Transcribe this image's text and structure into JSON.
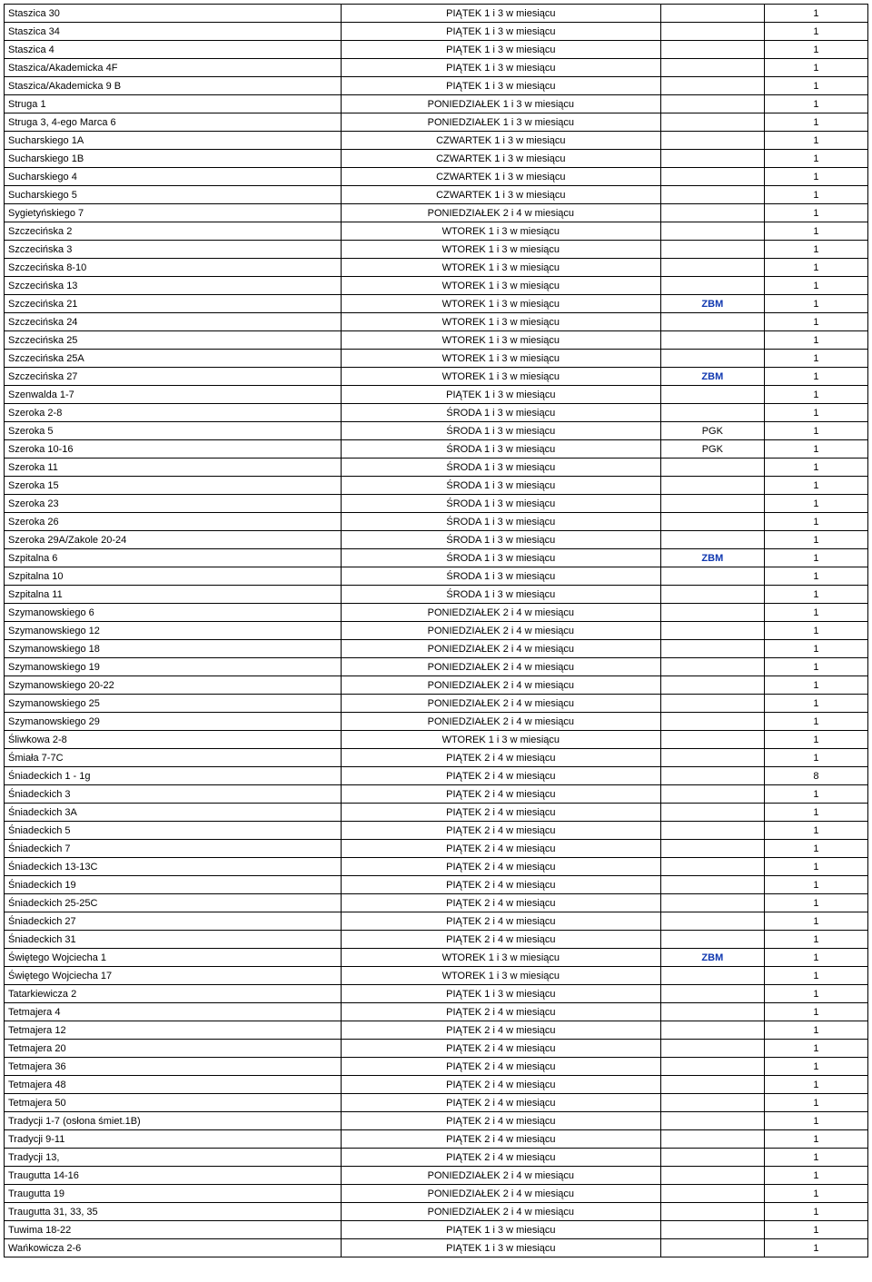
{
  "columns": [
    "address",
    "schedule",
    "tag",
    "qty"
  ],
  "tag_color": "#1038b0",
  "rows": [
    {
      "address": "Staszica 30",
      "schedule": "PIĄTEK 1 i 3 w miesiącu",
      "tag": "",
      "qty": "1"
    },
    {
      "address": "Staszica 34",
      "schedule": "PIĄTEK 1 i 3 w miesiącu",
      "tag": "",
      "qty": "1"
    },
    {
      "address": "Staszica 4",
      "schedule": "PIĄTEK 1 i 3 w miesiącu",
      "tag": "",
      "qty": "1"
    },
    {
      "address": "Staszica/Akademicka   4F",
      "schedule": "PIĄTEK 1 i 3 w miesiącu",
      "tag": "",
      "qty": "1"
    },
    {
      "address": "Staszica/Akademicka   9 B",
      "schedule": "PIĄTEK 1 i 3 w miesiącu",
      "tag": "",
      "qty": "1"
    },
    {
      "address": "Struga 1",
      "schedule": "PONIEDZIAŁEK 1 i 3 w miesiącu",
      "tag": "",
      "qty": "1"
    },
    {
      "address": "Struga 3, 4-ego Marca 6",
      "schedule": "PONIEDZIAŁEK 1 i 3 w miesiącu",
      "tag": "",
      "qty": "1"
    },
    {
      "address": "Sucharskiego   1A",
      "schedule": "CZWARTEK 1 i 3 w miesiącu",
      "tag": "",
      "qty": "1"
    },
    {
      "address": "Sucharskiego   1B",
      "schedule": "CZWARTEK 1 i 3 w miesiącu",
      "tag": "",
      "qty": "1"
    },
    {
      "address": "Sucharskiego   4",
      "schedule": "CZWARTEK 1 i 3 w miesiącu",
      "tag": "",
      "qty": "1"
    },
    {
      "address": "Sucharskiego   5",
      "schedule": "CZWARTEK 1 i 3 w miesiącu",
      "tag": "",
      "qty": "1"
    },
    {
      "address": "Sygietyńskiego 7",
      "schedule": "PONIEDZIAŁEK 2 i 4 w miesiącu",
      "tag": "",
      "qty": "1"
    },
    {
      "address": "Szczecińska   2",
      "schedule": "WTOREK 1 i 3 w miesiącu",
      "tag": "",
      "qty": "1"
    },
    {
      "address": "Szczecińska   3",
      "schedule": "WTOREK 1 i 3 w miesiącu",
      "tag": "",
      "qty": "1"
    },
    {
      "address": "Szczecińska   8-10",
      "schedule": "WTOREK 1 i 3 w miesiącu",
      "tag": "",
      "qty": "1"
    },
    {
      "address": "Szczecińska  13",
      "schedule": "WTOREK 1 i 3 w miesiącu",
      "tag": "",
      "qty": "1"
    },
    {
      "address": "Szczecińska  21",
      "schedule": "WTOREK 1 i 3 w miesiącu",
      "tag": "ZBM",
      "tag_bold": true,
      "qty": "1"
    },
    {
      "address": "Szczecińska  24",
      "schedule": "WTOREK 1 i 3 w miesiącu",
      "tag": "",
      "qty": "1"
    },
    {
      "address": "Szczecińska  25",
      "schedule": "WTOREK 1 i 3 w miesiącu",
      "tag": "",
      "qty": "1"
    },
    {
      "address": "Szczecińska  25A",
      "schedule": "WTOREK 1 i 3 w miesiącu",
      "tag": "",
      "qty": "1"
    },
    {
      "address": "Szczecińska  27",
      "schedule": "WTOREK 1 i 3 w miesiącu",
      "tag": "ZBM",
      "tag_bold": true,
      "qty": "1"
    },
    {
      "address": "Szenwalda   1-7",
      "schedule": "PIĄTEK 1 i 3 w miesiącu",
      "tag": "",
      "qty": "1"
    },
    {
      "address": "Szeroka   2-8",
      "schedule": "ŚRODA 1 i 3  w miesiącu",
      "tag": "",
      "qty": "1"
    },
    {
      "address": "Szeroka   5",
      "schedule": "ŚRODA 1 i 3  w miesiącu",
      "tag": "PGK",
      "qty": "1"
    },
    {
      "address": "Szeroka 10-16",
      "schedule": "ŚRODA 1 i 3  w miesiącu",
      "tag": "PGK",
      "qty": "1"
    },
    {
      "address": "Szeroka 11",
      "schedule": "ŚRODA 1 i 3  w miesiącu",
      "tag": "",
      "qty": "1"
    },
    {
      "address": "Szeroka 15",
      "schedule": "ŚRODA 1 i 3  w miesiącu",
      "tag": "",
      "qty": "1"
    },
    {
      "address": "Szeroka 23",
      "schedule": "ŚRODA 1 i 3  w miesiącu",
      "tag": "",
      "qty": "1"
    },
    {
      "address": "Szeroka 26",
      "schedule": "ŚRODA 1 i 3  w miesiącu",
      "tag": "",
      "qty": "1"
    },
    {
      "address": "Szeroka 29A/Zakole 20-24",
      "schedule": "ŚRODA 1 i 3  w miesiącu",
      "tag": "",
      "qty": "1"
    },
    {
      "address": "Szpitalna  6",
      "schedule": "ŚRODA 1 i 3  w miesiącu",
      "tag": "ZBM",
      "tag_bold": true,
      "qty": "1"
    },
    {
      "address": "Szpitalna 10",
      "schedule": "ŚRODA 1 i 3  w miesiącu",
      "tag": "",
      "qty": "1"
    },
    {
      "address": "Szpitalna 11",
      "schedule": "ŚRODA 1 i 3  w miesiącu",
      "tag": "",
      "qty": "1"
    },
    {
      "address": "Szymanowskiego  6",
      "schedule": "PONIEDZIAŁEK 2 i 4 w miesiącu",
      "tag": "",
      "qty": "1"
    },
    {
      "address": "Szymanowskiego 12",
      "schedule": "PONIEDZIAŁEK 2 i 4 w miesiącu",
      "tag": "",
      "qty": "1"
    },
    {
      "address": "Szymanowskiego 18",
      "schedule": "PONIEDZIAŁEK 2 i 4 w miesiącu",
      "tag": "",
      "qty": "1"
    },
    {
      "address": "Szymanowskiego 19",
      "schedule": "PONIEDZIAŁEK 2 i 4 w miesiącu",
      "tag": "",
      "qty": "1"
    },
    {
      "address": "Szymanowskiego 20-22",
      "schedule": "PONIEDZIAŁEK 2 i 4 w miesiącu",
      "tag": "",
      "qty": "1"
    },
    {
      "address": "Szymanowskiego 25",
      "schedule": "PONIEDZIAŁEK 2 i 4 w miesiącu",
      "tag": "",
      "qty": "1"
    },
    {
      "address": "Szymanowskiego 29",
      "schedule": "PONIEDZIAŁEK 2 i 4 w miesiącu",
      "tag": "",
      "qty": "1"
    },
    {
      "address": "Śliwkowa 2-8",
      "schedule": "WTOREK 1 i 3 w miesiącu",
      "tag": "",
      "qty": "1"
    },
    {
      "address": "Śmiała   7-7C",
      "schedule": "PIĄTEK 2 i 4 w miesiącu",
      "tag": "",
      "qty": "1"
    },
    {
      "address": "Śniadeckich  1 - 1g",
      "schedule": "PIĄTEK 2 i 4 w miesiącu",
      "tag": "",
      "qty": "8"
    },
    {
      "address": "Śniadeckich  3",
      "schedule": "PIĄTEK 2 i 4 w miesiącu",
      "tag": "",
      "qty": "1"
    },
    {
      "address": "Śniadeckich  3A",
      "schedule": "PIĄTEK 2 i 4 w miesiącu",
      "tag": "",
      "qty": "1"
    },
    {
      "address": "Śniadeckich  5",
      "schedule": "PIĄTEK 2 i 4 w miesiącu",
      "tag": "",
      "qty": "1"
    },
    {
      "address": "Śniadeckich  7",
      "schedule": "PIĄTEK 2 i 4 w miesiącu",
      "tag": "",
      "qty": "1"
    },
    {
      "address": "Śniadeckich 13-13C",
      "schedule": "PIĄTEK 2 i 4 w miesiącu",
      "tag": "",
      "qty": "1"
    },
    {
      "address": "Śniadeckich 19",
      "schedule": "PIĄTEK 2 i 4 w miesiącu",
      "tag": "",
      "qty": "1"
    },
    {
      "address": "Śniadeckich 25-25C",
      "schedule": "PIĄTEK 2 i 4 w miesiącu",
      "tag": "",
      "qty": "1"
    },
    {
      "address": "Śniadeckich 27",
      "schedule": "PIĄTEK 2 i 4 w miesiącu",
      "tag": "",
      "qty": "1"
    },
    {
      "address": "Śniadeckich 31",
      "schedule": "PIĄTEK 2 i 4 w miesiącu",
      "tag": "",
      "qty": "1"
    },
    {
      "address": "Świętego Wojciecha 1",
      "schedule": "WTOREK 1 i 3 w miesiącu",
      "tag": "ZBM",
      "tag_bold": true,
      "qty": "1"
    },
    {
      "address": "Świętego Wojciecha 17",
      "schedule": "WTOREK 1 i 3 w miesiącu",
      "tag": "",
      "qty": "1"
    },
    {
      "address": "Tatarkiewicza 2",
      "schedule": "PIĄTEK 1 i 3 w miesiącu",
      "tag": "",
      "qty": "1"
    },
    {
      "address": "Tetmajera  4",
      "schedule": "PIĄTEK 2 i 4 w miesiącu",
      "tag": "",
      "qty": "1"
    },
    {
      "address": "Tetmajera 12",
      "schedule": "PIĄTEK 2 i 4 w miesiącu",
      "tag": "",
      "qty": "1"
    },
    {
      "address": "Tetmajera 20",
      "schedule": "PIĄTEK 2 i 4 w miesiącu",
      "tag": "",
      "qty": "1"
    },
    {
      "address": "Tetmajera 36",
      "schedule": "PIĄTEK 2 i 4 w miesiącu",
      "tag": "",
      "qty": "1"
    },
    {
      "address": "Tetmajera 48",
      "schedule": "PIĄTEK 2 i 4 w miesiącu",
      "tag": "",
      "qty": "1"
    },
    {
      "address": "Tetmajera 50",
      "schedule": "PIĄTEK 2 i 4 w miesiącu",
      "tag": "",
      "qty": "1"
    },
    {
      "address": "Tradycji  1-7 (osłona śmiet.1B)",
      "schedule": "PIĄTEK 2 i 4 w miesiącu",
      "tag": "",
      "qty": "1"
    },
    {
      "address": "Tradycji  9-11",
      "schedule": "PIĄTEK 2 i 4 w miesiącu",
      "tag": "",
      "qty": "1"
    },
    {
      "address": "Tradycji 13,",
      "schedule": "PIĄTEK 2 i 4 w miesiącu",
      "tag": "",
      "qty": "1"
    },
    {
      "address": "Traugutta 14-16",
      "schedule": "PONIEDZIAŁEK 2 i 4 w miesiącu",
      "tag": "",
      "qty": "1"
    },
    {
      "address": "Traugutta 19",
      "schedule": "PONIEDZIAŁEK 2 i 4 w miesiącu",
      "tag": "",
      "qty": "1"
    },
    {
      "address": "Traugutta 31, 33, 35",
      "schedule": "PONIEDZIAŁEK 2 i 4 w miesiącu",
      "tag": "",
      "qty": "1"
    },
    {
      "address": "Tuwima  18-22",
      "schedule": "PIĄTEK 1 i 3 w miesiącu",
      "tag": "",
      "qty": "1"
    },
    {
      "address": "Wańkowicza   2-6",
      "schedule": "PIĄTEK 1 i 3 w miesiącu",
      "tag": "",
      "qty": "1"
    }
  ]
}
